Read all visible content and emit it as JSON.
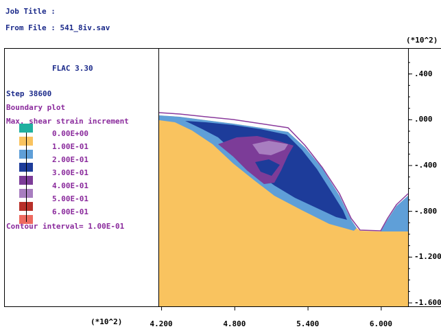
{
  "header": {
    "job_title": "Job Title :",
    "from_file": "From File : 541_8iv.sav"
  },
  "panel": {
    "program": "FLAC 3.30",
    "step": "Step  38600",
    "boundary": "Boundary plot",
    "contour_title": "Max. shear strain increment",
    "contour_interval": "Contour interval=  1.00E-01"
  },
  "legend": [
    {
      "label": "0.00E+00",
      "color": "#20b0a0"
    },
    {
      "label": "1.00E-01",
      "color": "#f9c35f"
    },
    {
      "label": "2.00E-01",
      "color": "#5f9fd8"
    },
    {
      "label": "3.00E-01",
      "color": "#1d3c9a"
    },
    {
      "label": "4.00E-01",
      "color": "#7c3c98"
    },
    {
      "label": "5.00E-01",
      "color": "#a87ec0"
    },
    {
      "label": "6.00E-01",
      "color": "#b8302a"
    },
    {
      "label": "",
      "color": "#ee6a60"
    }
  ],
  "colors": {
    "navy_text": "#1b2a8a",
    "purple_text": "#8a2a9c",
    "boundary": "#8a3a9c"
  },
  "chart_data": {
    "type": "heatmap",
    "x_multiplier": "(*10^2)",
    "y_multiplier": "(*10^2)",
    "x_ticks": [
      4.2,
      4.8,
      5.4,
      6.0
    ],
    "x_tick_labels": [
      "4.200",
      "4.800",
      "5.400",
      "6.000"
    ],
    "y_ticks": [
      0.4,
      0.0,
      -0.4,
      -0.8,
      -1.2,
      -1.6
    ],
    "y_tick_labels": [
      ".400",
      ".000",
      "-.400",
      "-.800",
      "-1.200",
      "-1.600"
    ],
    "xlim": [
      4.18,
      6.22
    ],
    "ylim": [
      -1.63,
      0.62
    ],
    "grid": false,
    "legend_position": "left panel"
  }
}
